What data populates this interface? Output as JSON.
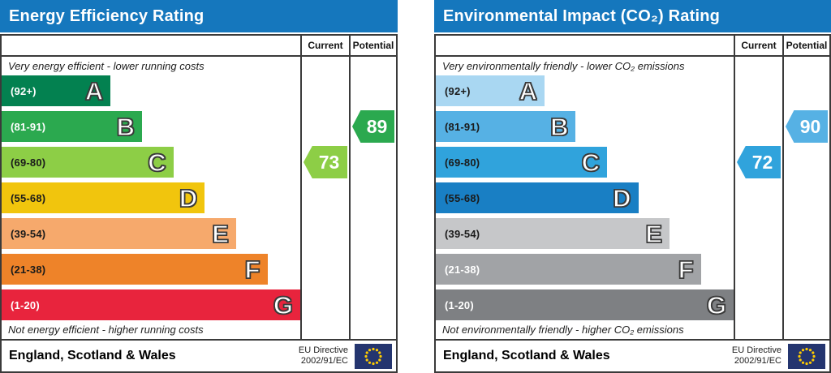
{
  "chart_data": [
    {
      "type": "bar",
      "title": "Energy Efficiency Rating",
      "columns": [
        "Current",
        "Potential"
      ],
      "top_note": "Very energy efficient - lower running costs",
      "bottom_note": "Not energy efficient - higher running costs",
      "bands": [
        {
          "letter": "A",
          "range": "(92+)",
          "color": "#038150",
          "label_color": "#ffffff",
          "width_pct": 36.5
        },
        {
          "letter": "B",
          "range": "(81-91)",
          "color": "#2ba94f",
          "label_color": "#ffffff",
          "width_pct": 47
        },
        {
          "letter": "C",
          "range": "(69-80)",
          "color": "#8dce46",
          "label_color": "#1b1b1b",
          "width_pct": 57.5
        },
        {
          "letter": "D",
          "range": "(55-68)",
          "color": "#f1c50d",
          "label_color": "#1b1b1b",
          "width_pct": 68
        },
        {
          "letter": "E",
          "range": "(39-54)",
          "color": "#f6a96c",
          "label_color": "#1b1b1b",
          "width_pct": 78.5
        },
        {
          "letter": "F",
          "range": "(21-38)",
          "color": "#ee8329",
          "label_color": "#1b1b1b",
          "width_pct": 89
        },
        {
          "letter": "G",
          "range": "(1-20)",
          "color": "#e8243d",
          "label_color": "#ffffff",
          "width_pct": 100
        }
      ],
      "current": {
        "value": 73,
        "band": "C",
        "color": "#8dce46"
      },
      "potential": {
        "value": 89,
        "band": "B",
        "color": "#2ba94f"
      },
      "footer": {
        "region": "England, Scotland & Wales",
        "directive_line1": "EU Directive",
        "directive_line2": "2002/91/EC"
      }
    },
    {
      "type": "bar",
      "title": "Environmental Impact (CO₂) Rating",
      "columns": [
        "Current",
        "Potential"
      ],
      "top_note": "Very environmentally friendly - lower CO₂ emissions",
      "bottom_note": "Not environmentally friendly - higher CO₂ emissions",
      "bands": [
        {
          "letter": "A",
          "range": "(92+)",
          "color": "#a9d7f2",
          "label_color": "#1b1b1b",
          "width_pct": 36.5
        },
        {
          "letter": "B",
          "range": "(81-91)",
          "color": "#56b1e4",
          "label_color": "#1b1b1b",
          "width_pct": 47
        },
        {
          "letter": "C",
          "range": "(69-80)",
          "color": "#30a3dc",
          "label_color": "#1b1b1b",
          "width_pct": 57.5
        },
        {
          "letter": "D",
          "range": "(55-68)",
          "color": "#197fc4",
          "label_color": "#1b1b1b",
          "width_pct": 68
        },
        {
          "letter": "E",
          "range": "(39-54)",
          "color": "#c6c7c9",
          "label_color": "#1b1b1b",
          "width_pct": 78.5
        },
        {
          "letter": "F",
          "range": "(21-38)",
          "color": "#a1a3a6",
          "label_color": "#ffffff",
          "width_pct": 89
        },
        {
          "letter": "G",
          "range": "(1-20)",
          "color": "#7e8083",
          "label_color": "#ffffff",
          "width_pct": 100
        }
      ],
      "current": {
        "value": 72,
        "band": "C",
        "color": "#30a3dc"
      },
      "potential": {
        "value": 90,
        "band": "B",
        "color": "#56b1e4"
      },
      "footer": {
        "region": "England, Scotland & Wales",
        "directive_line1": "EU Directive",
        "directive_line2": "2002/91/EC"
      }
    }
  ],
  "colors": {
    "title_bar": "#1577bd",
    "border": "#3a3a3a",
    "flag_blue": "#24356f",
    "flag_star": "#ffcc00"
  }
}
